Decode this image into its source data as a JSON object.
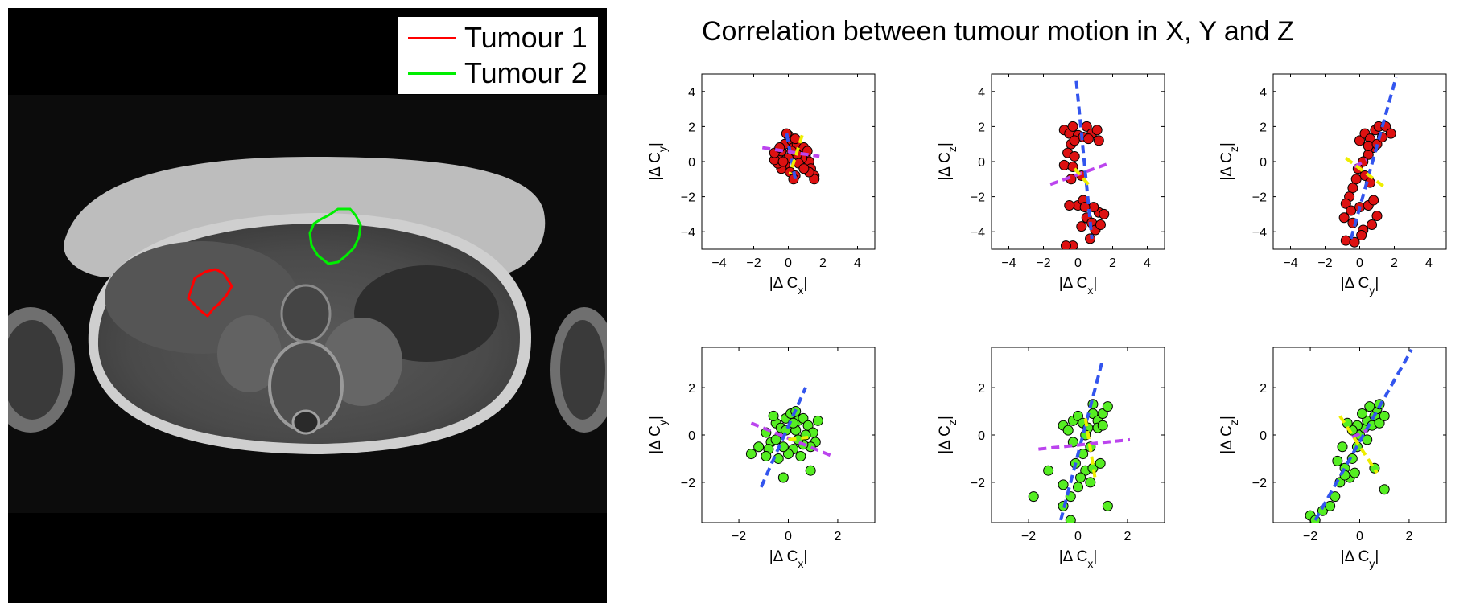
{
  "legend": {
    "items": [
      {
        "label": "Tumour 1",
        "color": "#ff0000"
      },
      {
        "label": "Tumour 2",
        "color": "#00ee00"
      }
    ]
  },
  "chart_data": [
    {
      "type": "scatter",
      "row": "Tumour 1",
      "xlabel": "|Δ C_x|",
      "ylabel": "|Δ C_y|",
      "xlim": [
        -5,
        5
      ],
      "ylim": [
        -5,
        5
      ],
      "xticks": [
        "−4",
        "−2",
        "0",
        "2",
        "4"
      ],
      "yticks": [
        "4",
        "2",
        "0",
        "−2",
        "−4"
      ],
      "marker_color": "#dd1111",
      "points": [
        [
          -0.6,
          0.3
        ],
        [
          -0.4,
          0.6
        ],
        [
          -0.2,
          1.0
        ],
        [
          0,
          1.5
        ],
        [
          0.2,
          1.2
        ],
        [
          0.3,
          0.8
        ],
        [
          0.5,
          1.0
        ],
        [
          0.7,
          0.5
        ],
        [
          0.9,
          0.8
        ],
        [
          1.0,
          0.3
        ],
        [
          1.2,
          0.0
        ],
        [
          1.3,
          -0.4
        ],
        [
          1.5,
          -0.8
        ],
        [
          1.5,
          -1.0
        ],
        [
          1.2,
          -0.6
        ],
        [
          0.8,
          0.2
        ],
        [
          0.5,
          0.4
        ],
        [
          0.2,
          0.6
        ],
        [
          0,
          0.2
        ],
        [
          -0.2,
          -0.2
        ],
        [
          -0.4,
          -0.4
        ],
        [
          -0.6,
          -0.1
        ],
        [
          -0.8,
          0.1
        ],
        [
          -0.8,
          0.5
        ],
        [
          -0.5,
          0.8
        ],
        [
          0.1,
          -0.6
        ],
        [
          0.4,
          -0.8
        ],
        [
          0.3,
          -1.0
        ],
        [
          -0.1,
          1.6
        ],
        [
          0.4,
          1.3
        ],
        [
          -0.3,
          0.0
        ],
        [
          0.6,
          -0.1
        ],
        [
          0.9,
          -0.4
        ],
        [
          1.1,
          0.6
        ]
      ],
      "fit_lines": [
        {
          "color": "#3355ee",
          "from": [
            -0.1,
            1.6
          ],
          "to": [
            0.4,
            -1.0
          ]
        },
        {
          "color": "#bb44ee",
          "from": [
            -1.5,
            0.8
          ],
          "to": [
            1.8,
            0.3
          ]
        },
        {
          "color": "#eeee00",
          "from": [
            0.8,
            1.5
          ],
          "to": [
            0.1,
            -0.7
          ]
        }
      ]
    },
    {
      "type": "scatter",
      "row": "Tumour 1",
      "xlabel": "|Δ C_x|",
      "ylabel": "|Δ C_z|",
      "xlim": [
        -5,
        5
      ],
      "ylim": [
        -5,
        5
      ],
      "xticks": [
        "−4",
        "−2",
        "0",
        "2",
        "4"
      ],
      "yticks": [
        "4",
        "2",
        "0",
        "−2",
        "−4"
      ],
      "marker_color": "#dd1111",
      "points": [
        [
          -0.8,
          1.8
        ],
        [
          -0.5,
          1.6
        ],
        [
          -0.3,
          2.0
        ],
        [
          0,
          1.5
        ],
        [
          0.3,
          1.4
        ],
        [
          0.5,
          2.0
        ],
        [
          0.8,
          1.6
        ],
        [
          1.1,
          1.8
        ],
        [
          1.2,
          1.2
        ],
        [
          -0.4,
          1.0
        ],
        [
          -0.6,
          0.5
        ],
        [
          -0.8,
          -0.2
        ],
        [
          -0.4,
          -1.0
        ],
        [
          0.2,
          -0.8
        ],
        [
          -0.3,
          -0.3
        ],
        [
          0.0,
          -2.5
        ],
        [
          -0.5,
          -2.5
        ],
        [
          0.3,
          -2.2
        ],
        [
          0.5,
          -3.2
        ],
        [
          0.8,
          -3.5
        ],
        [
          1.2,
          -2.9
        ],
        [
          1.5,
          -3.0
        ],
        [
          0.9,
          -2.6
        ],
        [
          0.2,
          -3.7
        ],
        [
          0.7,
          -4.4
        ],
        [
          -0.3,
          -4.8
        ],
        [
          -0.7,
          -4.8
        ],
        [
          1.0,
          -3.9
        ],
        [
          -0.2,
          1.2
        ],
        [
          0.6,
          1.3
        ],
        [
          1.3,
          -3.6
        ],
        [
          0.4,
          -2.6
        ],
        [
          -0.2,
          0.3
        ]
      ],
      "fit_lines": [
        {
          "color": "#3355ee",
          "from": [
            -0.1,
            4.6
          ],
          "to": [
            0.8,
            -4.4
          ]
        },
        {
          "color": "#bb44ee",
          "from": [
            -1.6,
            -1.3
          ],
          "to": [
            1.8,
            -0.1
          ]
        },
        {
          "color": "#eeee00",
          "from": [
            -0.2,
            -0.4
          ],
          "to": [
            0.6,
            -1.3
          ]
        }
      ]
    },
    {
      "type": "scatter",
      "row": "Tumour 1",
      "xlabel": "|Δ C_y|",
      "ylabel": "|Δ C_z|",
      "xlim": [
        -5,
        5
      ],
      "ylim": [
        -5,
        5
      ],
      "xticks": [
        "−4",
        "−2",
        "0",
        "2",
        "4"
      ],
      "yticks": [
        "4",
        "2",
        "0",
        "−2",
        "−4"
      ],
      "marker_color": "#dd1111",
      "points": [
        [
          0,
          1.2
        ],
        [
          0.3,
          1.6
        ],
        [
          0.6,
          1.3
        ],
        [
          0.9,
          1.8
        ],
        [
          1.1,
          2.0
        ],
        [
          1.5,
          2.0
        ],
        [
          1.8,
          1.6
        ],
        [
          0.8,
          0.8
        ],
        [
          0.5,
          0.4
        ],
        [
          0.2,
          0.0
        ],
        [
          -0.1,
          -0.4
        ],
        [
          0.3,
          -0.8
        ],
        [
          0.6,
          -1.2
        ],
        [
          -0.4,
          -1.5
        ],
        [
          -0.6,
          -2.0
        ],
        [
          -0.8,
          -2.4
        ],
        [
          -0.5,
          -2.8
        ],
        [
          -0.9,
          -3.2
        ],
        [
          -0.4,
          -3.5
        ],
        [
          0,
          -2.6
        ],
        [
          0.5,
          -2.5
        ],
        [
          0.8,
          -2.2
        ],
        [
          1.0,
          -3.1
        ],
        [
          0.2,
          -3.9
        ],
        [
          -0.8,
          -4.5
        ],
        [
          -0.3,
          -4.6
        ],
        [
          0.1,
          -4.2
        ],
        [
          0.5,
          0.9
        ],
        [
          1.0,
          1.0
        ],
        [
          1.3,
          1.4
        ],
        [
          -0.2,
          -1.0
        ],
        [
          0.7,
          -3.6
        ]
      ],
      "fit_lines": [
        {
          "color": "#3355ee",
          "from": [
            -0.5,
            -4.4
          ],
          "to": [
            2.1,
            4.8
          ]
        },
        {
          "color": "#bb44ee",
          "from": [
            -0.3,
            -0.3
          ],
          "to": [
            0.4,
            0.1
          ]
        },
        {
          "color": "#eeee00",
          "from": [
            -0.8,
            0.2
          ],
          "to": [
            1.5,
            -1.5
          ]
        }
      ]
    },
    {
      "type": "scatter",
      "row": "Tumour 2",
      "xlabel": "|Δ C_x|",
      "ylabel": "|Δ C_y|",
      "xlim": [
        -3.5,
        3.5
      ],
      "ylim": [
        -3.7,
        3.7
      ],
      "xticks": [
        "−2",
        "0",
        "2"
      ],
      "yticks": [
        "2",
        "0",
        "−2"
      ],
      "marker_color": "#55ee22",
      "points": [
        [
          -1.5,
          -0.8
        ],
        [
          -1.2,
          -0.5
        ],
        [
          -0.9,
          0.1
        ],
        [
          -0.7,
          -0.3
        ],
        [
          -0.5,
          0.5
        ],
        [
          -0.3,
          0.3
        ],
        [
          -0.1,
          0.7
        ],
        [
          0.1,
          0.9
        ],
        [
          0.3,
          1.0
        ],
        [
          0.4,
          0.6
        ],
        [
          0.6,
          0.7
        ],
        [
          0.8,
          0.4
        ],
        [
          1.0,
          0.1
        ],
        [
          1.1,
          -0.3
        ],
        [
          0.9,
          -0.5
        ],
        [
          0.6,
          -0.4
        ],
        [
          0.4,
          -0.2
        ],
        [
          0.2,
          -0.6
        ],
        [
          0,
          -0.8
        ],
        [
          -0.2,
          -0.5
        ],
        [
          -0.5,
          -0.2
        ],
        [
          -0.8,
          -0.6
        ],
        [
          -0.4,
          -1.0
        ],
        [
          -0.2,
          -1.8
        ],
        [
          0.9,
          -1.5
        ],
        [
          -0.1,
          0.2
        ],
        [
          0.3,
          0.2
        ],
        [
          0.7,
          0.0
        ],
        [
          -0.6,
          0.8
        ],
        [
          0.5,
          -0.9
        ],
        [
          -0.9,
          -0.9
        ],
        [
          0.2,
          0.5
        ],
        [
          1.2,
          0.6
        ]
      ],
      "fit_lines": [
        {
          "color": "#3355ee",
          "from": [
            -1.1,
            -2.2
          ],
          "to": [
            0.7,
            2.0
          ]
        },
        {
          "color": "#bb44ee",
          "from": [
            -1.5,
            0.5
          ],
          "to": [
            1.8,
            -0.9
          ]
        },
        {
          "color": "#eeee00",
          "from": [
            0.0,
            -0.2
          ],
          "to": [
            0.8,
            -0.1
          ]
        }
      ]
    },
    {
      "type": "scatter",
      "row": "Tumour 2",
      "xlabel": "|Δ C_x|",
      "ylabel": "|Δ C_z|",
      "xlim": [
        -3.5,
        3.5
      ],
      "ylim": [
        -3.7,
        3.7
      ],
      "xticks": [
        "−2",
        "0",
        "2"
      ],
      "yticks": [
        "2",
        "0",
        "−2"
      ],
      "marker_color": "#55ee22",
      "points": [
        [
          -0.6,
          0.4
        ],
        [
          -0.4,
          0.2
        ],
        [
          -0.2,
          0.6
        ],
        [
          0,
          0.8
        ],
        [
          0.2,
          0.5
        ],
        [
          0.4,
          0.3
        ],
        [
          0.6,
          0.9
        ],
        [
          0.8,
          0.6
        ],
        [
          1.0,
          0.9
        ],
        [
          1.2,
          1.2
        ],
        [
          0.5,
          -0.5
        ],
        [
          0.2,
          -0.8
        ],
        [
          -0.1,
          -1.2
        ],
        [
          0.3,
          -1.5
        ],
        [
          0.6,
          -1.4
        ],
        [
          0.9,
          -1.2
        ],
        [
          0.5,
          -2.0
        ],
        [
          0,
          -2.2
        ],
        [
          -0.3,
          -2.6
        ],
        [
          -0.6,
          -2.1
        ],
        [
          -1.2,
          -1.5
        ],
        [
          -1.8,
          -2.6
        ],
        [
          -0.6,
          -3.0
        ],
        [
          -0.3,
          -3.6
        ],
        [
          1.2,
          -3.0
        ],
        [
          0.3,
          0.0
        ],
        [
          0.8,
          0.3
        ],
        [
          -0.2,
          -0.3
        ],
        [
          0.6,
          1.3
        ],
        [
          1.0,
          0.4
        ],
        [
          0.1,
          -1.8
        ]
      ],
      "fit_lines": [
        {
          "color": "#3355ee",
          "from": [
            -0.7,
            -3.6
          ],
          "to": [
            1.0,
            3.2
          ]
        },
        {
          "color": "#bb44ee",
          "from": [
            -1.6,
            -0.6
          ],
          "to": [
            2.1,
            -0.2
          ]
        },
        {
          "color": "#eeee00",
          "from": [
            0.3,
            0.7
          ],
          "to": [
            0.7,
            -1.9
          ]
        }
      ]
    },
    {
      "type": "scatter",
      "row": "Tumour 2",
      "xlabel": "|Δ C_y|",
      "ylabel": "|Δ C_z|",
      "xlim": [
        -3.5,
        3.5
      ],
      "ylim": [
        -3.7,
        3.7
      ],
      "xticks": [
        "−2",
        "0",
        "2"
      ],
      "yticks": [
        "2",
        "0",
        "−2"
      ],
      "marker_color": "#55ee22",
      "points": [
        [
          -2.0,
          -3.4
        ],
        [
          -1.8,
          -3.6
        ],
        [
          -1.5,
          -3.2
        ],
        [
          -1.2,
          -3.0
        ],
        [
          -1.0,
          -2.6
        ],
        [
          -0.8,
          -2.0
        ],
        [
          -0.6,
          -1.4
        ],
        [
          -0.4,
          -1.8
        ],
        [
          -0.3,
          -1.0
        ],
        [
          -0.1,
          -0.5
        ],
        [
          0,
          0
        ],
        [
          0.2,
          0.3
        ],
        [
          0.3,
          0.6
        ],
        [
          0.5,
          0.4
        ],
        [
          0.6,
          0.8
        ],
        [
          0.8,
          0.5
        ],
        [
          1.0,
          0.8
        ],
        [
          0.7,
          1.1
        ],
        [
          0.4,
          1.2
        ],
        [
          0.1,
          0.9
        ],
        [
          -0.1,
          0.4
        ],
        [
          -0.3,
          0.2
        ],
        [
          -0.5,
          0.5
        ],
        [
          -0.7,
          -0.5
        ],
        [
          0.6,
          -1.4
        ],
        [
          1.0,
          -2.3
        ],
        [
          -0.2,
          -1.6
        ],
        [
          0.3,
          -0.2
        ],
        [
          0.8,
          1.3
        ],
        [
          -0.9,
          -1.1
        ],
        [
          -0.6,
          -1.7
        ]
      ],
      "fit_lines": [
        {
          "color": "#3355ee",
          "from": [
            -1.8,
            -3.6
          ],
          "to": [
            2.1,
            3.6
          ]
        },
        {
          "color": "#bb44ee",
          "from": [
            -0.3,
            -0.1
          ],
          "to": [
            0.3,
            0.2
          ]
        },
        {
          "color": "#eeee00",
          "from": [
            -0.8,
            0.8
          ],
          "to": [
            0.7,
            -1.6
          ]
        }
      ]
    }
  ],
  "title": "Correlation between tumour motion in X, Y and Z"
}
